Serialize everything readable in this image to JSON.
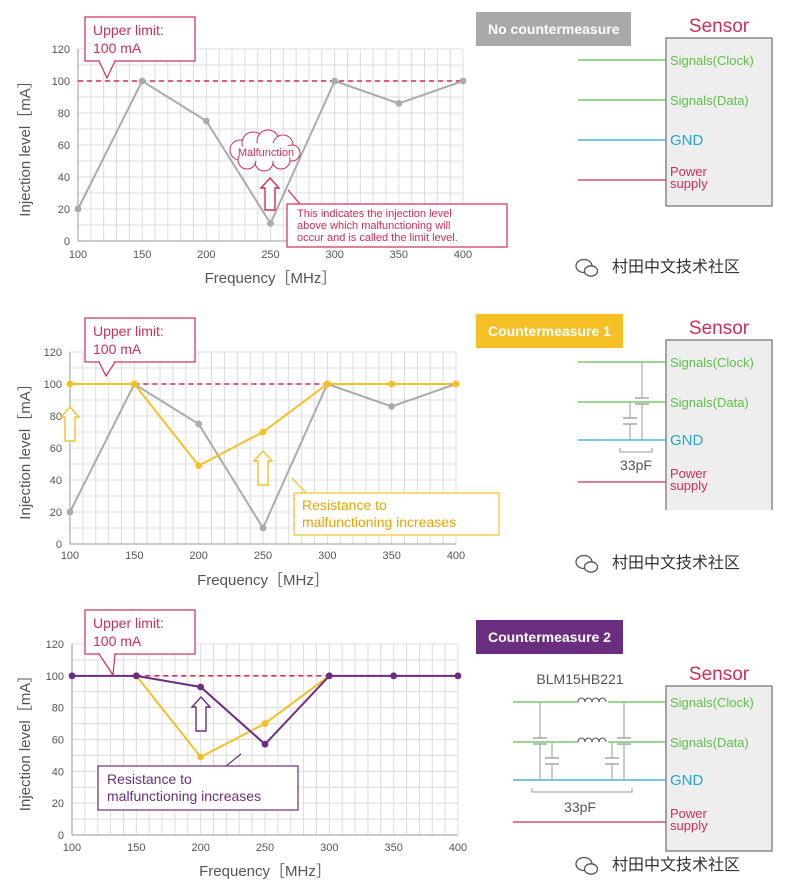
{
  "colors": {
    "gray": "#ababab",
    "yellow": "#f5c025",
    "purple": "#6b2d80",
    "red": "#cf2d5a",
    "green": "#5fbf4a",
    "blue": "#29a6cc",
    "grid": "#dcdcdc"
  },
  "panels": [
    {
      "title": "No countermeasure",
      "callout": "Upper limit:\n100 mA",
      "malfunction_label": "Malfunction",
      "note": "This indicates the injection level\nabove which malfunctioning will\noccur and is called the limit level.",
      "sensor_label": "Sensor",
      "watermark": "村田中文技术社区"
    },
    {
      "title": "Countermeasure 1",
      "callout": "Upper limit:\n100 mA",
      "note": "Resistance to\nmalfunctioning increases",
      "sensor_label": "Sensor",
      "cap_label": "33pF",
      "watermark": "村田中文技术社区"
    },
    {
      "title": "Countermeasure 2",
      "callout": "Upper limit:\n100 mA",
      "note": "Resistance to\nmalfunctioning increases",
      "sensor_label": "Sensor",
      "cap_label": "33pF",
      "part_label": "BLM15HB221",
      "watermark": "村田中文技术社区"
    }
  ],
  "sensor_pins": [
    "Signals(Clock)",
    "Signals(Data)",
    "GND",
    "Power\nsupply"
  ],
  "chart_data": [
    {
      "type": "line",
      "xlabel": "Frequency［MHz］",
      "ylabel": "Injection level［mA］",
      "x": [
        100,
        150,
        200,
        250,
        300,
        350,
        400
      ],
      "xlim": [
        100,
        400
      ],
      "ylim": [
        0,
        120
      ],
      "yticks": [
        0,
        20,
        40,
        60,
        80,
        100,
        120
      ],
      "limit_level": 100,
      "series": [
        {
          "values": [
            20,
            100,
            75,
            11,
            100,
            86,
            100
          ],
          "color": "gray"
        }
      ]
    },
    {
      "type": "line",
      "xlabel": "Frequency［MHz］",
      "ylabel": "Injection level［mA］",
      "x": [
        100,
        150,
        200,
        250,
        300,
        350,
        400
      ],
      "xlim": [
        100,
        400
      ],
      "ylim": [
        0,
        120
      ],
      "yticks": [
        0,
        20,
        40,
        60,
        80,
        100,
        120
      ],
      "limit_level": 100,
      "series": [
        {
          "values": [
            20,
            100,
            75,
            10,
            100,
            86,
            100
          ],
          "color": "gray"
        },
        {
          "values": [
            100,
            100,
            49,
            70,
            100,
            100,
            100
          ],
          "color": "yellow"
        }
      ]
    },
    {
      "type": "line",
      "xlabel": "Frequency［MHz］",
      "ylabel": "Injection level［mA］",
      "x": [
        100,
        150,
        200,
        250,
        300,
        350,
        400
      ],
      "xlim": [
        100,
        400
      ],
      "ylim": [
        0,
        120
      ],
      "yticks": [
        0,
        20,
        40,
        60,
        80,
        100,
        120
      ],
      "limit_level": 100,
      "series": [
        {
          "values": [
            null,
            100,
            49,
            70,
            100,
            null,
            null
          ],
          "color": "yellow"
        },
        {
          "values": [
            100,
            100,
            93,
            57,
            100,
            100,
            100
          ],
          "color": "purple"
        }
      ]
    }
  ]
}
